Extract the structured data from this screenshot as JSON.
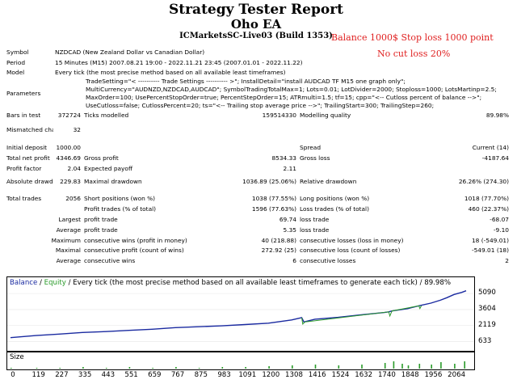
{
  "header": {
    "title": "Strategy Tester Report",
    "ea": "Oho EA",
    "server": "ICMarketsSC-Live03 (Build 1353)",
    "note_balance": "Balance 1000$ Stop loss 1000 point",
    "note_cut": "No cut loss 20%"
  },
  "info": {
    "symbol_label": "Symbol",
    "symbol_value": "NZDCAD (New Zealand Dollar vs Canadian Dollar)",
    "period_label": "Period",
    "period_value": "15 Minutes (M15) 2007.08.21 19:00 - 2022.11.21 23:45 (2007.01.01 - 2022.11.22)",
    "model_label": "Model",
    "model_value": "Every tick (the most precise method based on all available least timeframes)",
    "params_label": "Parameters",
    "params_value": "TradeSetting=\"< ---------- Trade Settings ---------- >\"; InstallDetail=\"install AUDCAD TF M15 one graph only\"; MultiCurrency=\"AUDNZD,NZDCAD,AUDCAD\"; SymbolTradingTotalMax=1; Lots=0.01; LotDivider=2000; Stoploss=1000; LotsMartinp=2.5; MaxOrder=100; UsePercentStopOrder=true; PercentStepOrder=15; ATRmulti=1.5; tf=15; cpp=\"<-- Cutloss percent of balance -->\"; UseCutloss=false; CutlossPercent=20; ts=\"<-- Trailing stop average price -->\"; TrailingStart=300; TrailingStep=260;",
    "bars_label": "Bars in test",
    "bars_value": "372724",
    "ticks_label": "Ticks modelled",
    "ticks_value": "159514330",
    "quality_label": "Modelling quality",
    "quality_value": "89.98%",
    "mis_label": "Mismatched charts errors",
    "mis_value": "32"
  },
  "stats": {
    "deposit_label": "Initial deposit",
    "deposit_value": "1000.00",
    "spread_label": "Spread",
    "spread_value": "Current (14)",
    "netprofit_label": "Total net profit",
    "netprofit_value": "4346.69",
    "grossprofit_label": "Gross profit",
    "grossprofit_value": "8534.33",
    "grossloss_label": "Gross loss",
    "grossloss_value": "-4187.64",
    "pf_label": "Profit factor",
    "pf_value": "2.04",
    "ep_label": "Expected payoff",
    "ep_value": "2.11",
    "absdd_label": "Absolute drawdown",
    "absdd_value": "229.83",
    "maxdd_label": "Maximal drawdown",
    "maxdd_value": "1036.89 (25.06%)",
    "reldd_label": "Relative drawdown",
    "reldd_value": "26.26% (274.30)",
    "trades_label": "Total trades",
    "trades_value": "2056",
    "short_label": "Short positions (won %)",
    "short_value": "1038 (77.55%)",
    "long_label": "Long positions (won %)",
    "long_value": "1018 (77.70%)",
    "proft_label": "Profit trades (% of total)",
    "proft_value": "1596 (77.63%)",
    "losst_label": "Loss trades (% of total)",
    "losst_value": "460 (22.37%)",
    "largest_label": "Largest",
    "lp_label": "profit trade",
    "lp_value": "69.74",
    "ll_label": "loss trade",
    "ll_value": "-68.07",
    "average_label": "Average",
    "ap_label": "profit trade",
    "ap_value": "5.35",
    "al_label": "loss trade",
    "al_value": "-9.10",
    "maximum_label": "Maximum",
    "mcw_label": "consecutive wins (profit in money)",
    "mcw_value": "40 (218.88)",
    "mcl_label": "consecutive losses (loss in money)",
    "mcl_value": "18 (-549.01)",
    "maximal_label": "Maximal",
    "mcp_label": "consecutive profit (count of wins)",
    "mcp_value": "272.92 (25)",
    "mcll_label": "consecutive loss (count of losses)",
    "mcll_value": "-549.01 (18)",
    "average2_label": "Average",
    "acw_label": "consecutive wins",
    "acw_value": "6",
    "acl_label": "consecutive losses",
    "acl_value": "2"
  },
  "chart_data": {
    "type": "line",
    "legend_balance": "Balance",
    "legend_sep": "/",
    "legend_equity": "Equity",
    "legend_rest": "/ Every tick (the most precise method based on all available least timeframes to generate each tick) / 89.98%",
    "y_ticks": [
      "5090",
      "3604",
      "2119",
      "633"
    ],
    "y_tick_values": [
      5090,
      3604,
      2119,
      633
    ],
    "x_ticks": [
      "0",
      "119",
      "227",
      "335",
      "443",
      "551",
      "659",
      "767",
      "875",
      "983",
      "1091",
      "1200",
      "1308",
      "1416",
      "1524",
      "1632",
      "1740",
      "1848",
      "1956",
      "2064"
    ],
    "x_tick_values": [
      0,
      119,
      227,
      335,
      443,
      551,
      659,
      767,
      875,
      983,
      1091,
      1200,
      1308,
      1416,
      1524,
      1632,
      1740,
      1848,
      1956,
      2064
    ],
    "xlim": [
      0,
      2150
    ],
    "ylim": [
      0,
      5700
    ],
    "series": [
      {
        "name": "Balance",
        "color": "#1a2aa0",
        "x": [
          0,
          119,
          227,
          335,
          443,
          551,
          659,
          767,
          875,
          983,
          1091,
          1200,
          1308,
          1355,
          1365,
          1416,
          1524,
          1632,
          1740,
          1760,
          1775,
          1848,
          1900,
          1956,
          2000,
          2030,
          2064,
          2100,
          2120
        ],
        "y": [
          1000,
          1190,
          1330,
          1480,
          1560,
          1670,
          1780,
          1930,
          2010,
          2090,
          2210,
          2340,
          2640,
          2860,
          2450,
          2710,
          2880,
          3110,
          3330,
          3390,
          3470,
          3690,
          3950,
          4200,
          4470,
          4700,
          5000,
          5200,
          5350
        ]
      },
      {
        "name": "Equity",
        "color": "#2a9a2a",
        "x": [
          1355,
          1360,
          1370,
          1760,
          1765,
          1775,
          1900,
          1905,
          1912
        ],
        "y": [
          2860,
          2250,
          2450,
          3390,
          3000,
          3470,
          3950,
          3700,
          3960
        ]
      }
    ],
    "size_label": "Size",
    "size_x": [
      0,
      119,
      227,
      335,
      443,
      551,
      659,
      767,
      875,
      983,
      1091,
      1200,
      1308,
      1416,
      1524,
      1632,
      1740,
      1780,
      1820,
      1848,
      1900,
      1956,
      2000,
      2064,
      2110
    ],
    "size_values": [
      1,
      1,
      1,
      2,
      1,
      2,
      1,
      2,
      1,
      2,
      2,
      3,
      4,
      5,
      4,
      5,
      7,
      9,
      6,
      4,
      6,
      5,
      8,
      6,
      9
    ]
  }
}
